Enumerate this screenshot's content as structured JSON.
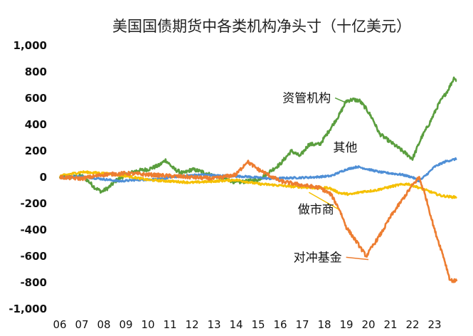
{
  "chart_data": {
    "type": "line",
    "title": "美国国债期货中各类机构净头寸（十亿美元）",
    "xlabel": "",
    "ylabel": "",
    "ylim": [
      -1000,
      1000
    ],
    "xlim": [
      2006,
      2024
    ],
    "yticks": [
      1000,
      800,
      600,
      400,
      200,
      0,
      -200,
      -400,
      -600,
      -800,
      -1000
    ],
    "ytick_labels": [
      "1,000",
      "800",
      "600",
      "400",
      "200",
      "0",
      "-200",
      "-400",
      "-600",
      "-800",
      "-1,000"
    ],
    "xticks": [
      2006,
      2007,
      2008,
      2009,
      2010,
      2011,
      2012,
      2013,
      2014,
      2015,
      2016,
      2017,
      2018,
      2019,
      2020,
      2021,
      2022,
      2023
    ],
    "xtick_labels": [
      "06",
      "07",
      "08",
      "09",
      "10",
      "11",
      "12",
      "13",
      "14",
      "15",
      "16",
      "17",
      "18",
      "19",
      "20",
      "21",
      "22",
      "23"
    ],
    "grid": false,
    "legend": "none",
    "series": [
      {
        "name": "资管机构",
        "color": "#5a9e3e",
        "x": [
          2006,
          2006.5,
          2007,
          2007.3,
          2007.6,
          2007.9,
          2008.2,
          2008.6,
          2009,
          2009.5,
          2010,
          2010.5,
          2010.8,
          2011.2,
          2011.6,
          2012,
          2012.5,
          2013,
          2013.5,
          2014,
          2014.5,
          2015,
          2015.5,
          2016,
          2016.5,
          2016.9,
          2017.3,
          2017.8,
          2018.2,
          2018.7,
          2019,
          2019.3,
          2019.6,
          2019.9,
          2020.2,
          2020.5,
          2020.9,
          2021.3,
          2021.7,
          2022,
          2022.4,
          2022.8,
          2023.2,
          2023.6,
          2023.9,
          2024
        ],
        "y": [
          0,
          0,
          10,
          -30,
          -80,
          -110,
          -80,
          -20,
          20,
          50,
          60,
          90,
          130,
          60,
          30,
          60,
          40,
          10,
          -10,
          -40,
          -30,
          -20,
          40,
          100,
          200,
          160,
          250,
          250,
          350,
          480,
          580,
          590,
          580,
          520,
          440,
          330,
          280,
          230,
          180,
          140,
          300,
          420,
          560,
          660,
          760,
          730
        ]
      },
      {
        "name": "其他",
        "color": "#4f8fd6",
        "x": [
          2006,
          2007,
          2008,
          2008.7,
          2009.5,
          2010.5,
          2011.5,
          2012.5,
          2013.5,
          2014.5,
          2015.5,
          2016.5,
          2017.5,
          2018.3,
          2019,
          2019.5,
          2020,
          2020.5,
          2021,
          2021.5,
          2022,
          2022.3,
          2022.7,
          2023,
          2023.5,
          2024
        ],
        "y": [
          0,
          5,
          -15,
          -30,
          -20,
          -15,
          10,
          20,
          10,
          5,
          -10,
          -5,
          0,
          10,
          60,
          80,
          60,
          40,
          30,
          20,
          0,
          -30,
          30,
          80,
          120,
          140
        ]
      },
      {
        "name": "做市商",
        "color": "#f5c000",
        "x": [
          2006,
          2007,
          2008,
          2009,
          2010,
          2011,
          2012,
          2013,
          2014,
          2015,
          2015.8,
          2016.5,
          2017.5,
          2018.2,
          2018.7,
          2019.2,
          2019.7,
          2020.3,
          2020.8,
          2021.3,
          2021.8,
          2022.3,
          2022.8,
          2023.3,
          2023.8,
          2024
        ],
        "y": [
          10,
          40,
          30,
          10,
          -20,
          -30,
          -40,
          -30,
          -20,
          -50,
          -60,
          -70,
          -80,
          -80,
          -120,
          -130,
          -110,
          -100,
          -80,
          -60,
          -50,
          -80,
          -110,
          -140,
          -150,
          -150
        ]
      },
      {
        "name": "对冲基金",
        "color": "#ed7d31",
        "x": [
          2006,
          2007,
          2008,
          2009,
          2010,
          2011,
          2012,
          2013,
          2014,
          2014.5,
          2015,
          2016,
          2017,
          2017.8,
          2018.3,
          2018.7,
          2019,
          2019.5,
          2019.9,
          2020.2,
          2020.6,
          2021,
          2021.5,
          2022,
          2022.3,
          2022.6,
          2023,
          2023.4,
          2023.7,
          2024
        ],
        "y": [
          0,
          -10,
          20,
          30,
          20,
          10,
          0,
          -10,
          20,
          120,
          60,
          -30,
          -60,
          -80,
          -130,
          -250,
          -380,
          -500,
          -600,
          -520,
          -420,
          -300,
          -180,
          -60,
          0,
          -150,
          -400,
          -600,
          -780,
          -790
        ]
      }
    ],
    "annotations": [
      {
        "text": "资管机构",
        "x": 2016.1,
        "y": 570,
        "arrow_to": [
          2019.0,
          565
        ]
      },
      {
        "text": "其他",
        "x": 2018.4,
        "y": 195
      },
      {
        "text": "做市商",
        "x": 2016.8,
        "y": -275,
        "arrow_to": [
          2017.3,
          -115
        ]
      },
      {
        "text": "对冲基金",
        "x": 2016.6,
        "y": -640,
        "arrow_to": [
          2020.0,
          -625
        ]
      }
    ]
  }
}
